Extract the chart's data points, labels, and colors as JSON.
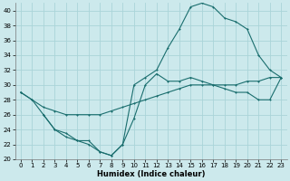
{
  "xlabel": "Humidex (Indice chaleur)",
  "bg_color": "#cce9ec",
  "grid_color": "#aad4d8",
  "line_color": "#1a6e6e",
  "xlim": [
    -0.5,
    23.5
  ],
  "ylim": [
    20,
    41
  ],
  "xticks": [
    0,
    1,
    2,
    3,
    4,
    5,
    6,
    7,
    8,
    9,
    10,
    11,
    12,
    13,
    14,
    15,
    16,
    17,
    18,
    19,
    20,
    21,
    22,
    23
  ],
  "yticks": [
    20,
    22,
    24,
    26,
    28,
    30,
    32,
    34,
    36,
    38,
    40
  ],
  "line_diagonal_x": [
    0,
    1,
    2,
    3,
    4,
    5,
    6,
    7,
    8,
    9,
    10,
    11,
    12,
    13,
    14,
    15,
    16,
    17,
    18,
    19,
    20,
    21,
    22,
    23
  ],
  "line_diagonal_y": [
    29,
    28,
    27,
    26.5,
    26,
    26,
    26,
    26,
    26.5,
    27,
    27.5,
    28,
    28.5,
    29,
    29.5,
    30,
    30,
    30,
    30,
    30,
    30.5,
    30.5,
    31,
    31
  ],
  "line_top_x": [
    0,
    1,
    2,
    3,
    4,
    5,
    6,
    7,
    8,
    9,
    10,
    11,
    12,
    13,
    14,
    15,
    16,
    17,
    18,
    19,
    20,
    21,
    22,
    23
  ],
  "line_top_y": [
    29,
    28,
    26,
    24,
    23,
    22.5,
    22,
    21,
    20.5,
    22,
    30,
    31,
    32,
    35,
    37.5,
    40.5,
    41,
    40.5,
    39,
    38.5,
    37.5,
    34,
    32,
    31
  ],
  "line_low_x": [
    2,
    3,
    4,
    5,
    6,
    7,
    8,
    9,
    10,
    11,
    12,
    13,
    14,
    15,
    16,
    17,
    18,
    19,
    20,
    21,
    22,
    23
  ],
  "line_low_y": [
    26,
    24,
    23.5,
    22.5,
    22.5,
    21,
    20.5,
    22,
    25.5,
    30,
    31.5,
    30.5,
    30.5,
    31,
    30.5,
    30,
    29.5,
    29,
    29,
    28,
    28,
    31
  ]
}
